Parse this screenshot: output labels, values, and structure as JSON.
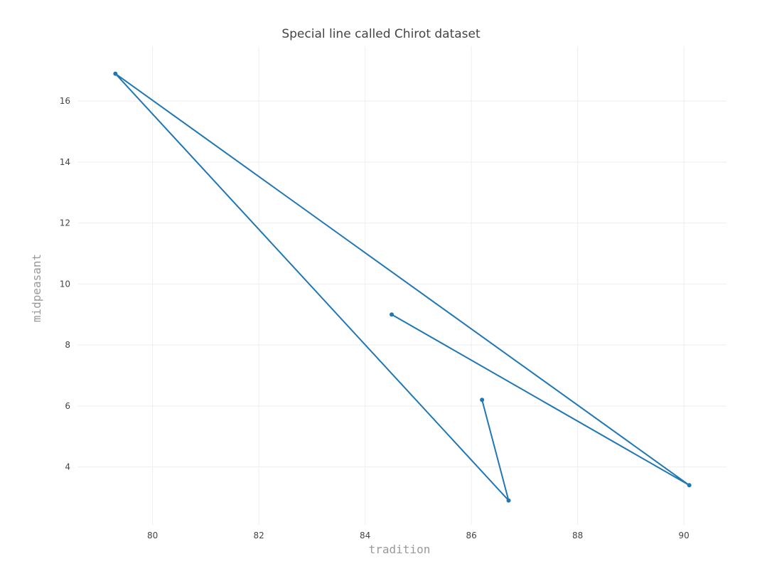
{
  "chart_data": {
    "type": "line",
    "title": "Special line called Chirot dataset",
    "xlabel": "tradition",
    "ylabel": "midpeasant",
    "xlim": [
      78.6,
      90.8
    ],
    "ylim": [
      2.1,
      17.8
    ],
    "x_ticks": [
      80,
      82,
      84,
      86,
      88,
      90
    ],
    "y_ticks": [
      4,
      6,
      8,
      10,
      12,
      14,
      16
    ],
    "grid": true,
    "legend": "none",
    "color": "#1f77b4",
    "series": [
      {
        "x": [
          84.5,
          90.1,
          79.3,
          86.7,
          86.2
        ],
        "y": [
          9.0,
          3.4,
          16.9,
          2.9,
          6.2
        ]
      }
    ]
  }
}
